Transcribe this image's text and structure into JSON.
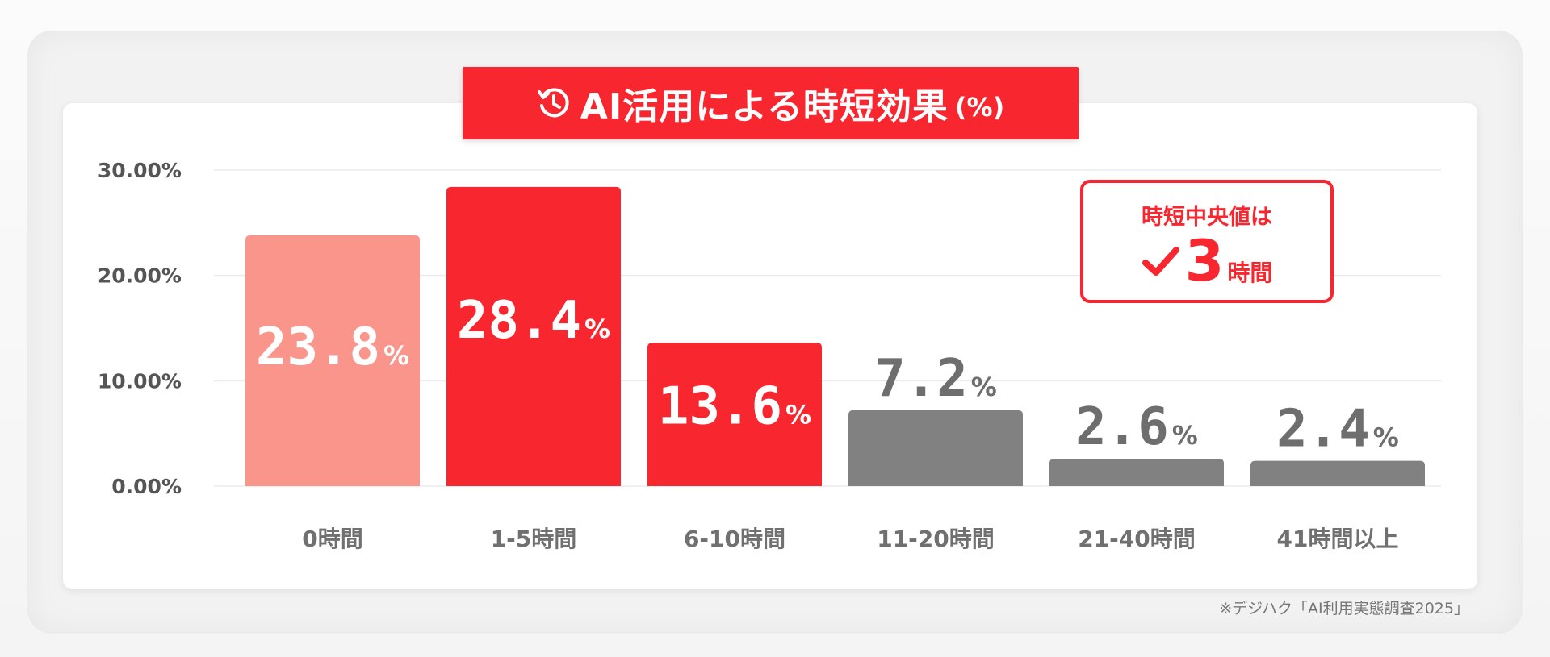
{
  "title": {
    "text": "AI活用による時短効果",
    "unit": "(%)",
    "icon": "clock-history-icon"
  },
  "median_callout": {
    "label": "時短中央値は",
    "value": "3",
    "unit": "時間",
    "icon": "check-icon"
  },
  "source_note": "※デジハク「AI利用実態調査2025」",
  "colors": {
    "accent": "#f7262f",
    "light_red": "#fa958c",
    "gray": "#818181",
    "gray_label": "#6e6e6e",
    "white": "#ffffff"
  },
  "chart_data": {
    "type": "bar",
    "categories": [
      "0時間",
      "1-5時間",
      "6-10時間",
      "11-20時間",
      "21-40時間",
      "41時間以上"
    ],
    "values": [
      23.8,
      28.4,
      13.6,
      7.2,
      2.6,
      2.4
    ],
    "value_labels": [
      "23.8",
      "28.4",
      "13.6",
      "7.2",
      "2.6",
      "2.4"
    ],
    "value_label_unit": "%",
    "bar_colors": [
      "#fa958c",
      "#f7262f",
      "#f7262f",
      "#818181",
      "#818181",
      "#818181"
    ],
    "label_inside": [
      true,
      true,
      true,
      false,
      false,
      false
    ],
    "yticks": [
      0,
      10,
      20,
      30
    ],
    "ytick_labels": [
      "0.00%",
      "10.00%",
      "20.00%",
      "30.00%"
    ],
    "ylim": [
      0,
      30
    ],
    "grid": true,
    "title": "AI活用による時短効果 (%)",
    "xlabel": "",
    "ylabel": ""
  }
}
